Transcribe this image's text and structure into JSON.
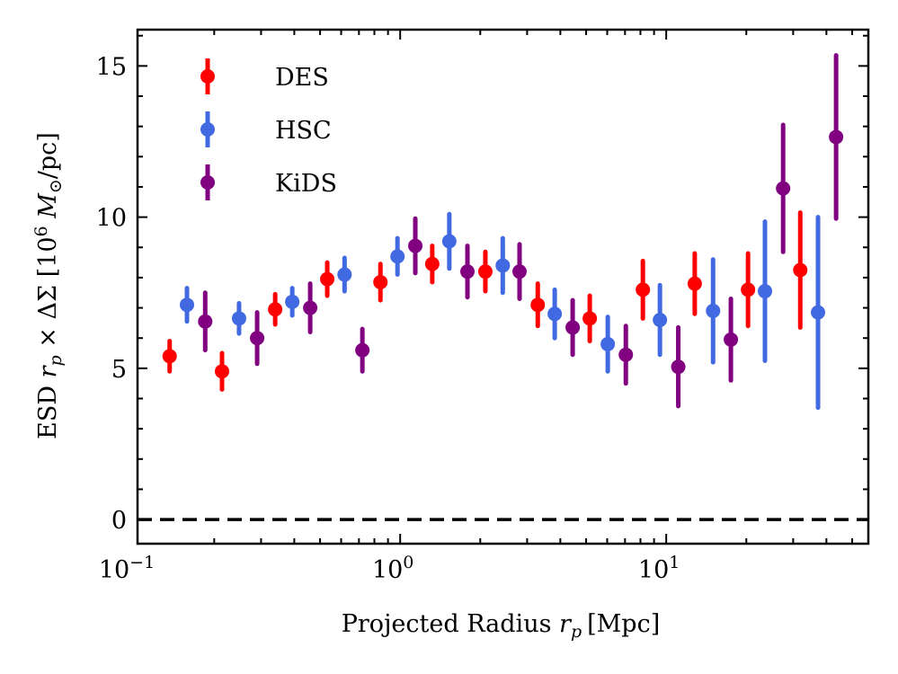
{
  "chart_data": {
    "type": "scatter",
    "title": "",
    "xlabel": "Projected Radius r_p [Mpc]",
    "xlabel_parts": {
      "pre": "Projected Radius ",
      "var": "r",
      "sub": "p",
      "unit": "[Mpc]"
    },
    "ylabel": "ESD r_p × ΔΣ [10^6 M_⊙/pc]",
    "ylabel_parts": {
      "pre": "ESD ",
      "var": "r",
      "sub": "p",
      "times": " × ΔΣ ",
      "unit_pre": "[10",
      "exp": "6",
      "mass": " M",
      "msub": "⊙",
      "unit_post": "/pc]"
    },
    "xscale": "log",
    "xlim": [
      0.103,
      57.5
    ],
    "ylim": [
      -0.8,
      16.2
    ],
    "xticks": [
      {
        "value": 0.1,
        "base": "10",
        "exp": "−1"
      },
      {
        "value": 1,
        "base": "10",
        "exp": "0"
      },
      {
        "value": 10,
        "base": "10",
        "exp": "1"
      }
    ],
    "yticks": [
      {
        "value": 0,
        "label": "0"
      },
      {
        "value": 5,
        "label": "5"
      },
      {
        "value": 10,
        "label": "10"
      },
      {
        "value": 15,
        "label": "15"
      }
    ],
    "reference_line": {
      "y": 0,
      "style": "dashed",
      "color": "#000000"
    },
    "legend_position": "top-left",
    "series": [
      {
        "name": "DES",
        "color": "#ff0000",
        "x": [
          0.136,
          0.214,
          0.339,
          0.532,
          0.843,
          1.32,
          2.09,
          3.29,
          5.16,
          8.17,
          12.8,
          20.3,
          31.9
        ],
        "y": [
          5.4,
          4.9,
          6.95,
          7.95,
          7.85,
          8.45,
          8.2,
          7.1,
          6.65,
          7.6,
          7.8,
          7.6,
          8.25
        ],
        "yerr": [
          0.5,
          0.6,
          0.5,
          0.55,
          0.6,
          0.6,
          0.65,
          0.7,
          0.75,
          0.95,
          1.0,
          1.2,
          1.9
        ]
      },
      {
        "name": "HSC",
        "color": "#4169e1",
        "x": [
          0.158,
          0.248,
          0.393,
          0.618,
          0.977,
          1.53,
          2.43,
          3.81,
          6.03,
          9.47,
          15.0,
          23.5,
          37.2
        ],
        "y": [
          7.1,
          6.65,
          7.2,
          8.1,
          8.7,
          9.2,
          8.4,
          6.8,
          5.8,
          6.6,
          6.9,
          7.55,
          6.85
        ],
        "yerr": [
          0.55,
          0.5,
          0.45,
          0.55,
          0.6,
          0.9,
          0.9,
          0.8,
          0.9,
          1.15,
          1.7,
          2.3,
          3.15
        ]
      },
      {
        "name": "KiDS",
        "color": "#800080",
        "x": [
          0.185,
          0.29,
          0.459,
          0.721,
          1.14,
          1.79,
          2.81,
          4.45,
          7.05,
          11.1,
          17.5,
          27.5,
          43.5
        ],
        "y": [
          6.55,
          6.0,
          7.0,
          5.6,
          9.05,
          8.2,
          8.2,
          6.35,
          5.45,
          5.05,
          5.95,
          10.95,
          12.65
        ],
        "yerr": [
          0.95,
          0.85,
          0.8,
          0.7,
          0.9,
          0.85,
          0.9,
          0.9,
          0.95,
          1.3,
          1.35,
          2.1,
          2.7
        ]
      }
    ]
  }
}
